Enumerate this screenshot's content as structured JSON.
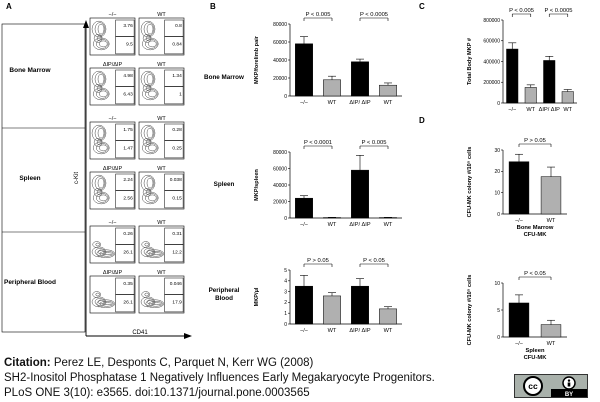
{
  "panels": {
    "A": {
      "letter": "A",
      "row_labels": [
        "Bone Marrow",
        "Spleen",
        "Peripheral Blood"
      ],
      "y_axis": "c-Kit",
      "x_axis": "CD41",
      "plots": [
        {
          "genotype": "−/−",
          "q_top": "3.76",
          "q_bot": "9.5"
        },
        {
          "genotype": "WT",
          "q_top": "0.8",
          "q_bot": "0.84"
        },
        {
          "genotype": "ΔIP/ΔIP",
          "q_top": "4.98",
          "q_bot": "6.43"
        },
        {
          "genotype": "WT",
          "q_top": "1.34",
          "q_bot": "1"
        },
        {
          "genotype": "−/−",
          "q_top": "1.75",
          "q_bot": "1.47"
        },
        {
          "genotype": "WT",
          "q_top": "0.28",
          "q_bot": "0.25"
        },
        {
          "genotype": "ΔIP/ΔIP",
          "q_top": "2.24",
          "q_bot": "2.56"
        },
        {
          "genotype": "WT",
          "q_top": "0.038",
          "q_bot": "0.15"
        },
        {
          "genotype": "−/−",
          "q_top": "0.26",
          "q_bot": "26.1"
        },
        {
          "genotype": "WT",
          "q_top": "0.31",
          "q_bot": "12.2"
        },
        {
          "genotype": "ΔIP/ΔIP",
          "q_top": "0.35",
          "q_bot": "26.1"
        },
        {
          "genotype": "WT",
          "q_top": "0.046",
          "q_bot": "17.9"
        }
      ]
    },
    "B": {
      "letter": "B"
    },
    "C": {
      "letter": "C"
    },
    "D": {
      "letter": "D"
    }
  },
  "chart_data": [
    {
      "id": "B1",
      "type": "bar",
      "row_label": "Bone Marrow",
      "ylabel": "MKP/forelimb pair",
      "yticks": [
        "0",
        "20000",
        "40000",
        "60000",
        "80000"
      ],
      "ylim": [
        0,
        80000
      ],
      "categories": [
        "−/−",
        "WT",
        "ΔIP/ ΔIP",
        "WT"
      ],
      "values": [
        58000,
        18000,
        38000,
        12000
      ],
      "errors": [
        8000,
        4000,
        3000,
        2500
      ],
      "colors": [
        "#000000",
        "#b0b0b0",
        "#000000",
        "#b0b0b0"
      ],
      "brackets": [
        {
          "from": 0,
          "to": 1,
          "label": "P < 0.005"
        },
        {
          "from": 2,
          "to": 3,
          "label": "P < 0.0005"
        }
      ]
    },
    {
      "id": "B2",
      "type": "bar",
      "row_label": "Spleen",
      "ylabel": "MKP/spleen",
      "yticks": [
        "0",
        "20000",
        "40000",
        "60000",
        "80000"
      ],
      "ylim": [
        0,
        80000
      ],
      "categories": [
        "−/−",
        "WT",
        "ΔIP/ ΔIP",
        "WT"
      ],
      "values": [
        24000,
        500,
        58000,
        500
      ],
      "errors": [
        3000,
        300,
        18000,
        300
      ],
      "colors": [
        "#000000",
        "#b0b0b0",
        "#000000",
        "#b0b0b0"
      ],
      "brackets": [
        {
          "from": 0,
          "to": 1,
          "label": "P < 0.0001"
        },
        {
          "from": 2,
          "to": 3,
          "label": "P < 0.005"
        }
      ]
    },
    {
      "id": "B3",
      "type": "bar",
      "row_label": "Peripheral Blood",
      "ylabel": "MKP/µl",
      "yticks": [
        "0",
        "1",
        "2",
        "3",
        "4",
        "5"
      ],
      "ylim": [
        0,
        5
      ],
      "categories": [
        "−/−",
        "WT",
        "ΔIP/ ΔIP",
        "WT"
      ],
      "values": [
        3.5,
        2.6,
        3.5,
        1.4
      ],
      "errors": [
        1.0,
        0.3,
        0.7,
        0.2
      ],
      "colors": [
        "#000000",
        "#b0b0b0",
        "#000000",
        "#b0b0b0"
      ],
      "brackets": [
        {
          "from": 0,
          "to": 1,
          "label": "P > 0.05"
        },
        {
          "from": 2,
          "to": 3,
          "label": "P < 0.05"
        }
      ]
    },
    {
      "id": "C",
      "type": "bar",
      "ylabel": "Total Body MKP #",
      "yticks": [
        "0",
        "200000",
        "400000",
        "600000",
        "800000"
      ],
      "ylim": [
        0,
        800000
      ],
      "categories": [
        "−/−",
        "WT",
        "ΔIP/ ΔIP",
        "WT"
      ],
      "values": [
        520000,
        150000,
        410000,
        110000
      ],
      "errors": [
        60000,
        25000,
        40000,
        20000
      ],
      "colors": [
        "#000000",
        "#b0b0b0",
        "#000000",
        "#b0b0b0"
      ],
      "brackets": [
        {
          "from": 0,
          "to": 1,
          "label": "P < 0.005"
        },
        {
          "from": 2,
          "to": 3,
          "label": "P < 0.0005"
        }
      ]
    },
    {
      "id": "D1",
      "type": "bar",
      "ylabel": "CFU-MK colony #/10⁵ cells",
      "xlabel_lines": [
        "Bone Marrow",
        "CFU-MK"
      ],
      "yticks": [
        "0",
        "10",
        "20",
        "30"
      ],
      "ylim": [
        0,
        30
      ],
      "categories": [
        "−/−",
        "WT"
      ],
      "values": [
        24.5,
        17.5
      ],
      "errors": [
        3.5,
        4.5
      ],
      "colors": [
        "#000000",
        "#b0b0b0"
      ],
      "brackets": [
        {
          "from": 0,
          "to": 1,
          "label": "P > 0.05"
        }
      ]
    },
    {
      "id": "D2",
      "type": "bar",
      "ylabel": "CFU-MK colony #/10⁵ cells",
      "xlabel_lines": [
        "Spleen",
        "CFU-MK"
      ],
      "yticks": [
        "0",
        "5",
        "10"
      ],
      "ylim": [
        0,
        10
      ],
      "categories": [
        "−/−",
        "WT"
      ],
      "values": [
        6.3,
        2.3
      ],
      "errors": [
        1.5,
        0.8
      ],
      "colors": [
        "#000000",
        "#b0b0b0"
      ],
      "brackets": [
        {
          "from": 0,
          "to": 1,
          "label": "P < 0.05"
        }
      ]
    }
  ],
  "citation": {
    "label": "Citation:",
    "line1": "Perez LE, Desponts C, Parquet N, Kerr WG (2008)",
    "line2": "SH2-Inositol Phosphatase 1 Negatively Influences Early Megakaryocyte Progenitors.",
    "line3": "PLoS ONE 3(10): e3565. doi:10.1371/journal.pone.0003565"
  },
  "license_badge": {
    "left": "cc",
    "right": "BY"
  }
}
